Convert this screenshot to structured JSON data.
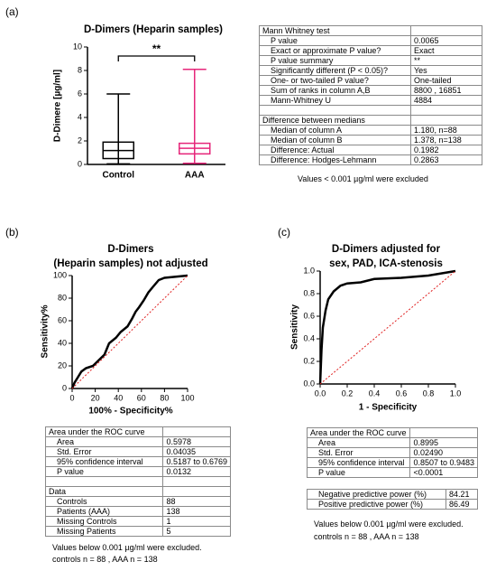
{
  "panels": [
    "(a)",
    "(b)",
    "(c)"
  ],
  "chart_data": [
    {
      "type": "box",
      "title": [
        "D-Dimers (Heparin samples)"
      ],
      "ylabel": "D-Dimere [µg/ml]",
      "categories": [
        "Control",
        "AAA"
      ],
      "colors": [
        "#000000",
        "#e6267a"
      ],
      "min": [
        0.05,
        0.1
      ],
      "q1": [
        0.5,
        0.9
      ],
      "median": [
        1.18,
        1.378
      ],
      "q3": [
        1.9,
        1.8
      ],
      "max": [
        6.0,
        8.1
      ],
      "ylim": [
        0,
        10
      ],
      "yticks": [
        0,
        2,
        4,
        6,
        8,
        10
      ],
      "annotation": "**"
    },
    {
      "type": "line",
      "title": [
        "D-Dimers",
        "(Heparin samples) not adjusted"
      ],
      "xlabel": "100% - Specificity%",
      "ylabel": "Sensitivity%",
      "xlim": [
        0,
        100
      ],
      "ylim": [
        0,
        100
      ],
      "xticks": [
        0,
        20,
        40,
        60,
        80,
        100
      ],
      "yticks": [
        0,
        20,
        40,
        60,
        80,
        100
      ],
      "series": [
        {
          "color": "#000000",
          "style": "solid",
          "x": [
            0,
            2,
            5,
            8,
            12,
            18,
            22,
            28,
            32,
            38,
            42,
            48,
            52,
            55,
            58,
            62,
            66,
            70,
            75,
            80,
            90,
            100
          ],
          "values": [
            0,
            5,
            10,
            15,
            18,
            20,
            24,
            30,
            40,
            45,
            50,
            55,
            62,
            68,
            72,
            78,
            85,
            90,
            96,
            98,
            99,
            100
          ]
        },
        {
          "color": "#e02020",
          "style": "dotted",
          "x": [
            0,
            100
          ],
          "values": [
            0,
            100
          ]
        }
      ]
    },
    {
      "type": "line",
      "title": [
        "D-Dimers adjusted for",
        "sex, PAD, ICA-stenosis"
      ],
      "xlabel": "1 - Specificity",
      "ylabel": "Sensitivity",
      "xlim": [
        0,
        1
      ],
      "ylim": [
        0,
        1
      ],
      "xticks": [
        {
          "value": 0,
          "label": "0.0"
        },
        0.2,
        0.4,
        0.6,
        0.8,
        {
          "value": 1,
          "label": "1.0"
        }
      ],
      "yticks": [
        {
          "value": 0,
          "label": "0.0"
        },
        0.2,
        0.4,
        0.6,
        0.8,
        {
          "value": 1,
          "label": "1.0"
        }
      ],
      "series": [
        {
          "color": "#000000",
          "style": "solid",
          "x": [
            0,
            0.01,
            0.02,
            0.04,
            0.06,
            0.1,
            0.15,
            0.2,
            0.3,
            0.4,
            0.6,
            0.8,
            0.9,
            1
          ],
          "values": [
            0,
            0.3,
            0.5,
            0.65,
            0.75,
            0.82,
            0.87,
            0.89,
            0.9,
            0.93,
            0.94,
            0.96,
            0.98,
            1
          ]
        },
        {
          "color": "#e02020",
          "style": "dotted",
          "x": [
            0,
            1
          ],
          "values": [
            0,
            1
          ]
        }
      ]
    }
  ],
  "tables": [
    {
      "rows": [
        [
          "Mann Whitney test"
        ],
        [
          "P value",
          "0.0065"
        ],
        [
          "Exact or approximate P value?",
          "Exact"
        ],
        [
          "P value summary",
          "**"
        ],
        [
          "Significantly different (P < 0.05)?",
          "Yes"
        ],
        [
          "One- or two-tailed P value?",
          "One-tailed"
        ],
        [
          "Sum of  ranks in column A,B",
          "8800 , 16851"
        ],
        [
          "Mann-Whitney U",
          "4884"
        ],
        [],
        [
          "Difference between medians"
        ],
        [
          "Median of column A",
          "1.180, n=88"
        ],
        [
          "Median of column B",
          "1.378, n=138"
        ],
        [
          "Difference: Actual",
          "0.1982"
        ],
        [
          "Difference: Hodges-Lehmann",
          "0.2863"
        ]
      ]
    },
    {
      "rows": [
        [
          "Area under the ROC curve"
        ],
        [
          "Area",
          "0.5978"
        ],
        [
          "Std. Error",
          "0.04035"
        ],
        [
          "95% confidence interval",
          "0.5187 to 0.6769"
        ],
        [
          "P value",
          "0.0132"
        ],
        [],
        [
          "Data"
        ],
        [
          "Controls",
          "88"
        ],
        [
          "Patients (AAA)",
          "138"
        ],
        [
          "Missing Controls",
          "1"
        ],
        [
          "Missing Patients",
          "5"
        ]
      ]
    },
    {
      "rows": [
        [
          "Area under the ROC curve"
        ],
        [
          "Area",
          "0.8995"
        ],
        [
          "Std. Error",
          "0.02490"
        ],
        [
          "95% confidence interval",
          "0.8507 to 0.9483"
        ],
        [
          "P value",
          "<0.0001"
        ]
      ]
    },
    {
      "rows": [
        [
          "Negative predictive power (%)",
          "84.21"
        ],
        [
          "Positive predictive power (%)",
          "86.49"
        ]
      ]
    }
  ],
  "notes": [
    [
      "Values < 0.001 µg/ml were excluded"
    ],
    [
      "Values below 0.001 µg/ml were excluded.",
      "controls n = 88 , AAA n = 138"
    ],
    [
      "Values below 0.001 µg/ml were excluded.",
      "controls n = 88 , AAA n = 138"
    ]
  ]
}
